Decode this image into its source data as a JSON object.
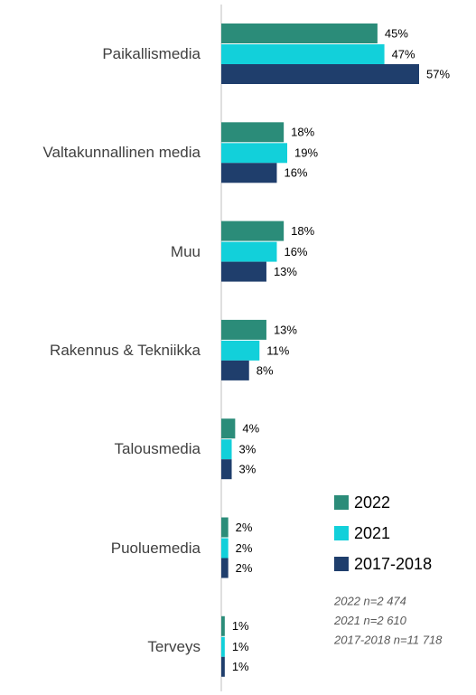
{
  "chart_data": {
    "type": "bar",
    "orientation": "horizontal",
    "categories": [
      "Paikallismedia",
      "Valtakunnallinen media",
      "Muu",
      "Rakennus & Tekniikka",
      "Talousmedia",
      "Puoluemedia",
      "Terveys"
    ],
    "series": [
      {
        "name": "2022",
        "color": "#2b8c79",
        "values": [
          45,
          18,
          18,
          13,
          4,
          2,
          1
        ],
        "value_labels": [
          "45%",
          "18%",
          "18%",
          "13%",
          "4%",
          "2%",
          "1%"
        ]
      },
      {
        "name": "2021",
        "color": "#12d0da",
        "values": [
          47,
          19,
          16,
          11,
          3,
          2,
          1
        ],
        "value_labels": [
          "47%",
          "19%",
          "16%",
          "11%",
          "3%",
          "2%",
          "1%"
        ]
      },
      {
        "name": "2017-2018",
        "color": "#1f3e6c",
        "values": [
          57,
          16,
          13,
          8,
          3,
          2,
          1
        ],
        "value_labels": [
          "57%",
          "16%",
          "13%",
          "8%",
          "3%",
          "2%",
          "1%"
        ]
      }
    ],
    "legend": "lower right",
    "annotations": [
      "2022 n=2 474",
      "2021 n=2 610",
      "2017-2018 n=11 718"
    ]
  }
}
